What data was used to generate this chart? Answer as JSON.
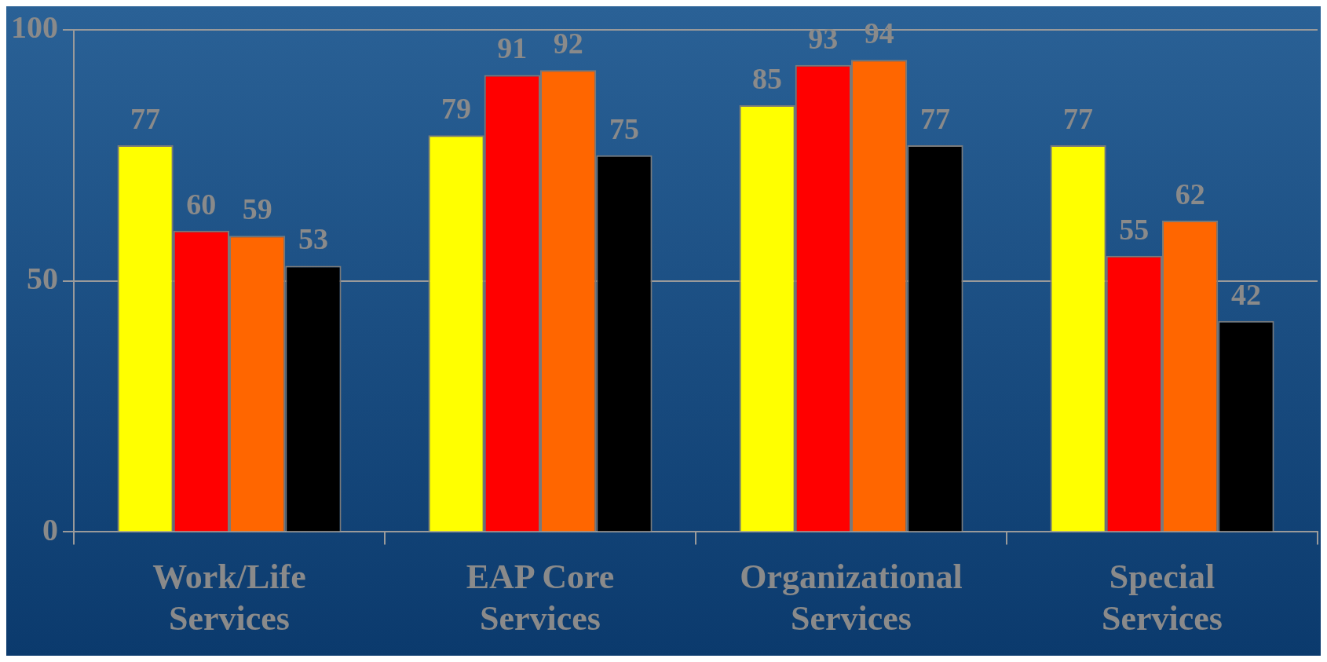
{
  "chart_data": {
    "type": "bar",
    "categories": [
      "Work/Life\nServices",
      "EAP Core\nServices",
      "Organizational\nServices",
      "Special\nServices"
    ],
    "series": [
      {
        "color": "#ffff00",
        "values": [
          77,
          79,
          85,
          77
        ]
      },
      {
        "color": "#ff0000",
        "values": [
          60,
          91,
          93,
          55
        ]
      },
      {
        "color": "#ff6600",
        "values": [
          59,
          92,
          94,
          62
        ]
      },
      {
        "color": "#000000",
        "values": [
          53,
          75,
          77,
          42
        ]
      }
    ],
    "ylim": [
      0,
      100
    ],
    "yticks": [
      0,
      50,
      100
    ],
    "grid": "y",
    "legend": false,
    "data_labels": true
  }
}
